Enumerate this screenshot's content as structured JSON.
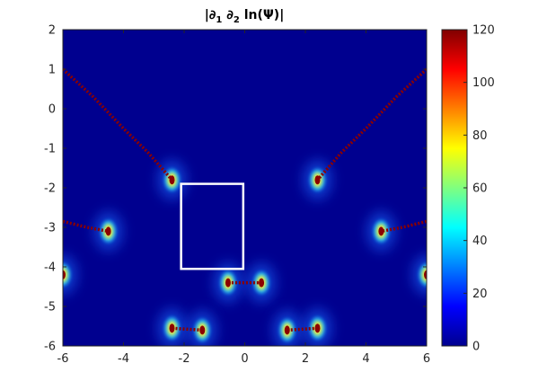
{
  "chart_data": {
    "type": "heatmap",
    "title": "|∂₁ ∂₂ ln(Ψ)|",
    "title_parts": {
      "a": "|∂",
      "s1": "1",
      "b": " ∂",
      "s2": "2",
      "c": " ln(Ψ)|"
    },
    "xlabel": "",
    "ylabel": "",
    "xlim": [
      -6,
      6
    ],
    "ylim": [
      -6,
      2
    ],
    "xticks": [
      -6,
      -4,
      -2,
      0,
      2,
      4,
      6
    ],
    "yticks": [
      2,
      1,
      0,
      -1,
      -2,
      -3,
      -4,
      -5,
      -6
    ],
    "colorbar": {
      "range": [
        0,
        120
      ],
      "ticks": [
        120,
        100,
        80,
        60,
        40,
        20,
        0
      ],
      "colormap": "jet"
    },
    "background_color": "#00008f",
    "peak_color": "#8b0000",
    "hot_spots": [
      {
        "x": -2.4,
        "y": -1.8
      },
      {
        "x": 2.4,
        "y": -1.8
      },
      {
        "x": -4.5,
        "y": -3.1
      },
      {
        "x": 4.5,
        "y": -3.1
      },
      {
        "x": -0.55,
        "y": -4.4
      },
      {
        "x": 0.55,
        "y": -4.4
      },
      {
        "x": -2.4,
        "y": -5.55
      },
      {
        "x": -1.4,
        "y": -5.6
      },
      {
        "x": 1.4,
        "y": -5.6
      },
      {
        "x": 2.4,
        "y": -5.55
      },
      {
        "x": -6.0,
        "y": -4.2
      },
      {
        "x": 6.0,
        "y": -4.2
      }
    ],
    "peak_curves": [
      {
        "points": [
          [
            -6.0,
            1.0
          ],
          [
            -5.0,
            0.3
          ],
          [
            -4.0,
            -0.5
          ],
          [
            -3.2,
            -1.1
          ],
          [
            -2.4,
            -1.8
          ]
        ]
      },
      {
        "points": [
          [
            6.0,
            1.0
          ],
          [
            5.0,
            0.3
          ],
          [
            4.0,
            -0.5
          ],
          [
            3.2,
            -1.1
          ],
          [
            2.4,
            -1.8
          ]
        ]
      },
      {
        "points": [
          [
            -6.0,
            -2.85
          ],
          [
            -5.2,
            -3.0
          ],
          [
            -4.5,
            -3.1
          ]
        ]
      },
      {
        "points": [
          [
            6.0,
            -2.85
          ],
          [
            5.2,
            -3.0
          ],
          [
            4.5,
            -3.1
          ]
        ]
      },
      {
        "points": [
          [
            -0.55,
            -4.4
          ],
          [
            0.55,
            -4.4
          ]
        ]
      },
      {
        "points": [
          [
            -2.4,
            -5.55
          ],
          [
            -1.4,
            -5.6
          ]
        ]
      },
      {
        "points": [
          [
            1.4,
            -5.6
          ],
          [
            2.4,
            -5.55
          ]
        ]
      }
    ],
    "rectangle": {
      "x": [
        -2.1,
        -0.05
      ],
      "y": [
        -4.05,
        -1.9
      ],
      "color": "#ffffff"
    }
  }
}
